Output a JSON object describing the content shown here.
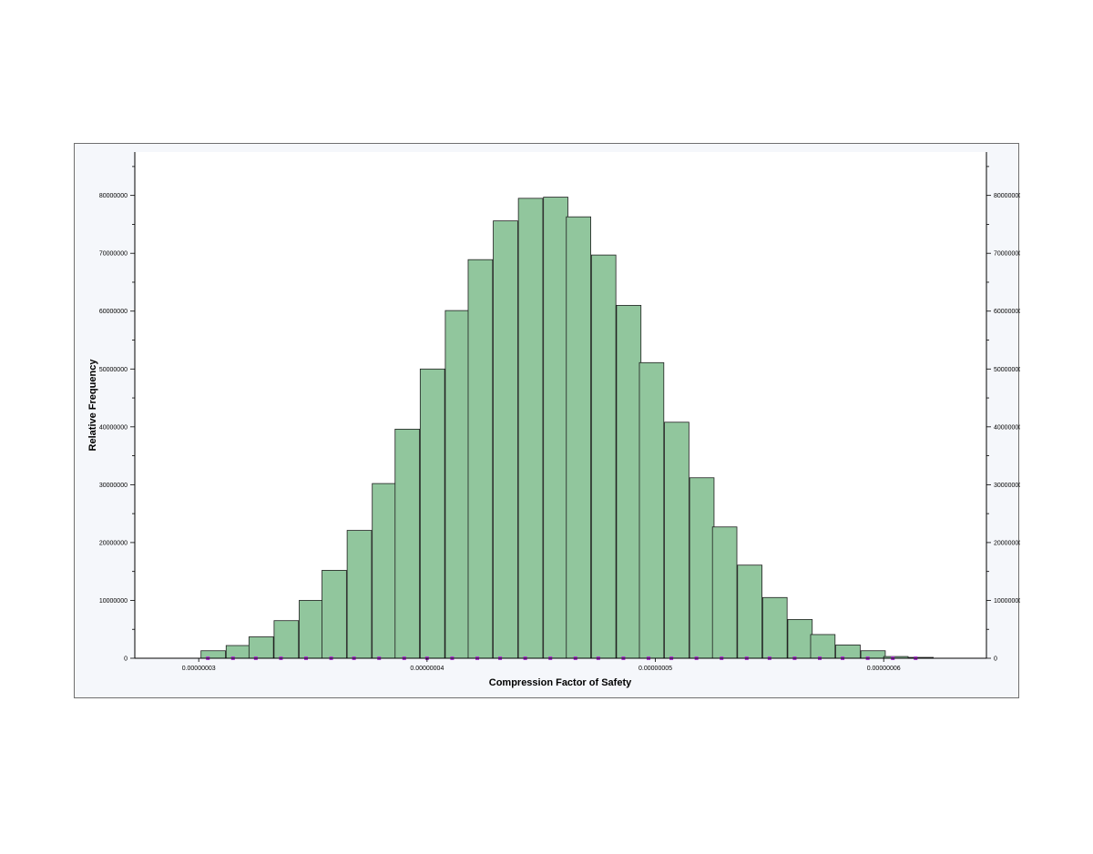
{
  "chart_data": {
    "type": "bar",
    "title": "",
    "xlabel": "Compression Factor of Safety",
    "ylabel": "Relative Frequency",
    "x_ticks": [
      3e-08,
      4e-08,
      5e-08,
      6e-08
    ],
    "x_tick_labels": [
      "0.00000003",
      "0.00000004",
      "0.00000005",
      "0.00000006"
    ],
    "xlim": [
      2.72e-08,
      6.45e-08
    ],
    "y_ticks": [
      0,
      10000000,
      20000000,
      30000000,
      40000000,
      50000000,
      60000000,
      70000000,
      80000000
    ],
    "y_tick_labels": [
      "0",
      "10000000",
      "20000000",
      "30000000",
      "40000000",
      "50000000",
      "60000000",
      "70000000",
      "80000000"
    ],
    "ylim": [
      0,
      87500000
    ],
    "right_axis_mirrored": true,
    "grid": false,
    "bin_width": 1.07e-09,
    "bins": [
      {
        "x0": 3.01e-08,
        "value": 1300000
      },
      {
        "x0": 3.12e-08,
        "value": 2200000
      },
      {
        "x0": 3.22e-08,
        "value": 3700000
      },
      {
        "x0": 3.33e-08,
        "value": 6500000
      },
      {
        "x0": 3.44e-08,
        "value": 10000000
      },
      {
        "x0": 3.54e-08,
        "value": 15200000
      },
      {
        "x0": 3.65e-08,
        "value": 22100000
      },
      {
        "x0": 3.76e-08,
        "value": 30200000
      },
      {
        "x0": 3.86e-08,
        "value": 39600000
      },
      {
        "x0": 3.97e-08,
        "value": 50000000
      },
      {
        "x0": 4.08e-08,
        "value": 60100000
      },
      {
        "x0": 4.18e-08,
        "value": 68900000
      },
      {
        "x0": 4.29e-08,
        "value": 75600000
      },
      {
        "x0": 4.4e-08,
        "value": 79500000
      },
      {
        "x0": 4.51e-08,
        "value": 79700000
      },
      {
        "x0": 4.61e-08,
        "value": 76300000
      },
      {
        "x0": 4.72e-08,
        "value": 69700000
      },
      {
        "x0": 4.83e-08,
        "value": 61000000
      },
      {
        "x0": 4.93e-08,
        "value": 51100000
      },
      {
        "x0": 5.04e-08,
        "value": 40800000
      },
      {
        "x0": 5.15e-08,
        "value": 31200000
      },
      {
        "x0": 5.25e-08,
        "value": 22700000
      },
      {
        "x0": 5.36e-08,
        "value": 16100000
      },
      {
        "x0": 5.47e-08,
        "value": 10500000
      },
      {
        "x0": 5.58e-08,
        "value": 6700000
      },
      {
        "x0": 5.68e-08,
        "value": 4100000
      },
      {
        "x0": 5.79e-08,
        "value": 2300000
      },
      {
        "x0": 5.9e-08,
        "value": 1300000
      },
      {
        "x0": 6e-08,
        "value": 300000
      },
      {
        "x0": 6.11e-08,
        "value": 150000
      }
    ],
    "markers": {
      "color": "#b13bd6",
      "x": [
        3.04e-08,
        3.15e-08,
        3.25e-08,
        3.36e-08,
        3.47e-08,
        3.58e-08,
        3.68e-08,
        3.79e-08,
        3.9e-08,
        4e-08,
        4.11e-08,
        4.22e-08,
        4.32e-08,
        4.43e-08,
        4.54e-08,
        4.65e-08,
        4.75e-08,
        4.86e-08,
        4.97e-08,
        5.07e-08,
        5.18e-08,
        5.29e-08,
        5.4e-08,
        5.5e-08,
        5.61e-08,
        5.72e-08,
        5.82e-08,
        5.93e-08,
        6.04e-08,
        6.14e-08
      ]
    },
    "colors": {
      "bar_fill": "#91c69d",
      "bar_stroke": "#1f1f1f",
      "background": "#ffffff",
      "frame_background": "#f5f7fb",
      "frame_border": "#6f6f6f"
    }
  }
}
